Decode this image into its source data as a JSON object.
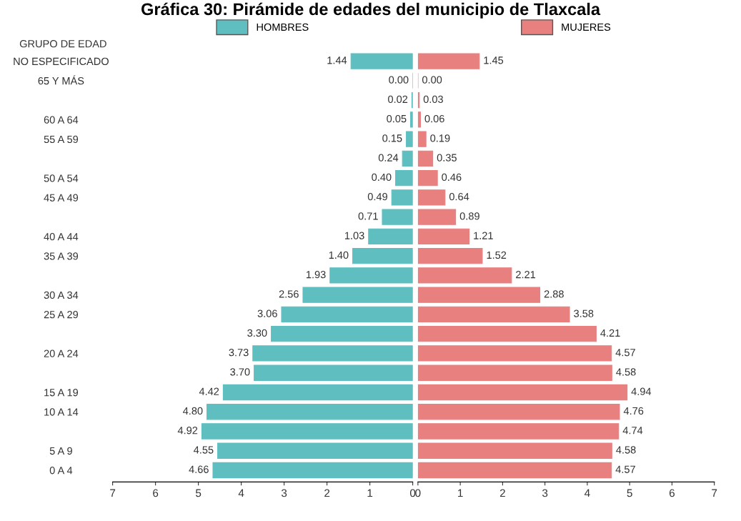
{
  "chart_data": [
    {
      "type": "bar",
      "orientation": "horizontal",
      "title": "Gráfica 30: Pirámide de edades del municipio de Tlaxcala",
      "ylabel": "GRUPO DE EDAD",
      "categories": [
        "NO ESPECIFICADO",
        "65 Y MÁS",
        null,
        "60 A 64",
        "55 A 59",
        null,
        "50 A 54",
        "45 A 49",
        null,
        "40 A 44",
        "35 A 39",
        null,
        "30 A 34",
        "25 A 29",
        null,
        "20 A 24",
        null,
        "15 A 19",
        "10 A 14",
        null,
        "5 A 9",
        "0 A 4"
      ],
      "series": [
        {
          "name": "HOMBRES",
          "color": "#5fbfc0",
          "values": [
            1.44,
            0.0,
            0.02,
            0.05,
            0.15,
            0.24,
            0.4,
            0.49,
            0.71,
            1.03,
            1.4,
            1.93,
            2.56,
            3.06,
            3.3,
            3.73,
            3.7,
            4.42,
            4.8,
            4.92,
            4.55,
            4.66
          ],
          "value_labels": [
            "1.44",
            "0.00",
            "0.02",
            "0.05",
            "0.15",
            "0.24",
            "0.40",
            "0.49",
            "0.71",
            "1.03",
            "1.40",
            "1.93",
            "2.56",
            "3.06",
            "3.30",
            "3.73",
            "3.70",
            "4.42",
            "4.80",
            "4.92",
            "4.55",
            "4.66"
          ]
        }
      ],
      "xlim": [
        7,
        0
      ],
      "xticks": [
        0,
        1,
        2,
        3,
        4,
        5,
        6,
        7
      ],
      "legend": "top",
      "grid": false
    },
    {
      "type": "bar",
      "orientation": "horizontal",
      "categories": [
        null,
        null,
        null,
        null,
        null,
        null,
        null,
        null,
        null,
        null,
        null,
        null,
        null,
        null,
        null,
        null,
        null,
        null,
        null,
        null,
        null,
        null
      ],
      "series": [
        {
          "name": "MUJERES",
          "color": "#e88080",
          "values": [
            1.45,
            0.0,
            0.03,
            0.06,
            0.19,
            0.35,
            0.46,
            0.64,
            0.89,
            1.21,
            1.52,
            2.21,
            2.88,
            3.58,
            4.21,
            4.57,
            4.58,
            4.94,
            4.76,
            4.74,
            4.58,
            4.57
          ],
          "value_labels": [
            "1.45",
            "0.00",
            "0.03",
            "0.06",
            "0.19",
            "0.35",
            "0.46",
            "0.64",
            "0.89",
            "1.21",
            "1.52",
            "2.21",
            "2.88",
            "3.58",
            "4.21",
            "4.57",
            "4.58",
            "4.94",
            "4.76",
            "4.74",
            "4.58",
            "4.57"
          ]
        }
      ],
      "xlim": [
        0,
        7
      ],
      "xticks": [
        0,
        1,
        2,
        3,
        4,
        5,
        6,
        7
      ],
      "tick_labels": "x",
      "legend": "top",
      "grid": false
    }
  ]
}
